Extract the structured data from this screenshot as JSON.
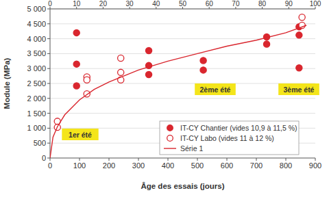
{
  "chart_data": {
    "type": "scatter",
    "x_label": "Âge des essais (jours)",
    "y_label": "Module (MPa)",
    "xlim": [
      0,
      900
    ],
    "xticks": [
      0,
      100,
      200,
      300,
      400,
      500,
      600,
      700,
      800,
      900
    ],
    "x2lim": [
      0,
      100
    ],
    "x2ticks": [
      0,
      10,
      20,
      30,
      40,
      50,
      60,
      70,
      80,
      90,
      100
    ],
    "ylim": [
      0,
      5000
    ],
    "yticks": [
      0,
      500,
      {
        "value": 1000,
        "label": "1 000"
      },
      {
        "value": 1500,
        "label": "1 500"
      },
      {
        "value": 2000,
        "label": "2 000"
      },
      {
        "value": 2500,
        "label": "2 500"
      },
      {
        "value": 3000,
        "label": "3 000"
      },
      {
        "value": 3500,
        "label": "3 500"
      },
      {
        "value": 4000,
        "label": "4 000"
      },
      {
        "value": 4500,
        "label": "4 500"
      },
      {
        "value": 5000,
        "label": "5 000"
      }
    ],
    "grid": true,
    "legend": "bottom-right",
    "annotations": [
      "1er été",
      "2ème été",
      "3ème été"
    ],
    "series": [
      {
        "name": "IT-CY Chantier (vides 10,9 à 11,5 %)",
        "type": "scatter",
        "marker": "filled",
        "color": "#d9262e",
        "x": [
          90,
          90,
          90,
          335,
          335,
          335,
          520,
          520,
          735,
          735,
          845,
          845,
          845
        ],
        "values": [
          4200,
          3150,
          2420,
          3600,
          3100,
          2800,
          3270,
          2950,
          4060,
          3820,
          4400,
          4120,
          3020
        ]
      },
      {
        "name": "IT-CY Labo (vides 11 à 12 %)",
        "type": "scatter",
        "marker": "open",
        "color": "#d9262e",
        "x": [
          25,
          25,
          125,
          125,
          125,
          240,
          240,
          240,
          855,
          855
        ],
        "values": [
          1230,
          1030,
          2720,
          2620,
          2150,
          3350,
          2870,
          2620,
          4720,
          4450
        ]
      },
      {
        "name": "Série 1",
        "type": "line",
        "color": "#d9262e",
        "x": [
          0,
          10,
          25,
          50,
          100,
          150,
          200,
          300,
          400,
          500,
          600,
          700,
          800,
          870
        ],
        "values": [
          0,
          700,
          1050,
          1450,
          1950,
          2300,
          2550,
          2950,
          3250,
          3500,
          3750,
          3950,
          4200,
          4450
        ]
      }
    ]
  }
}
